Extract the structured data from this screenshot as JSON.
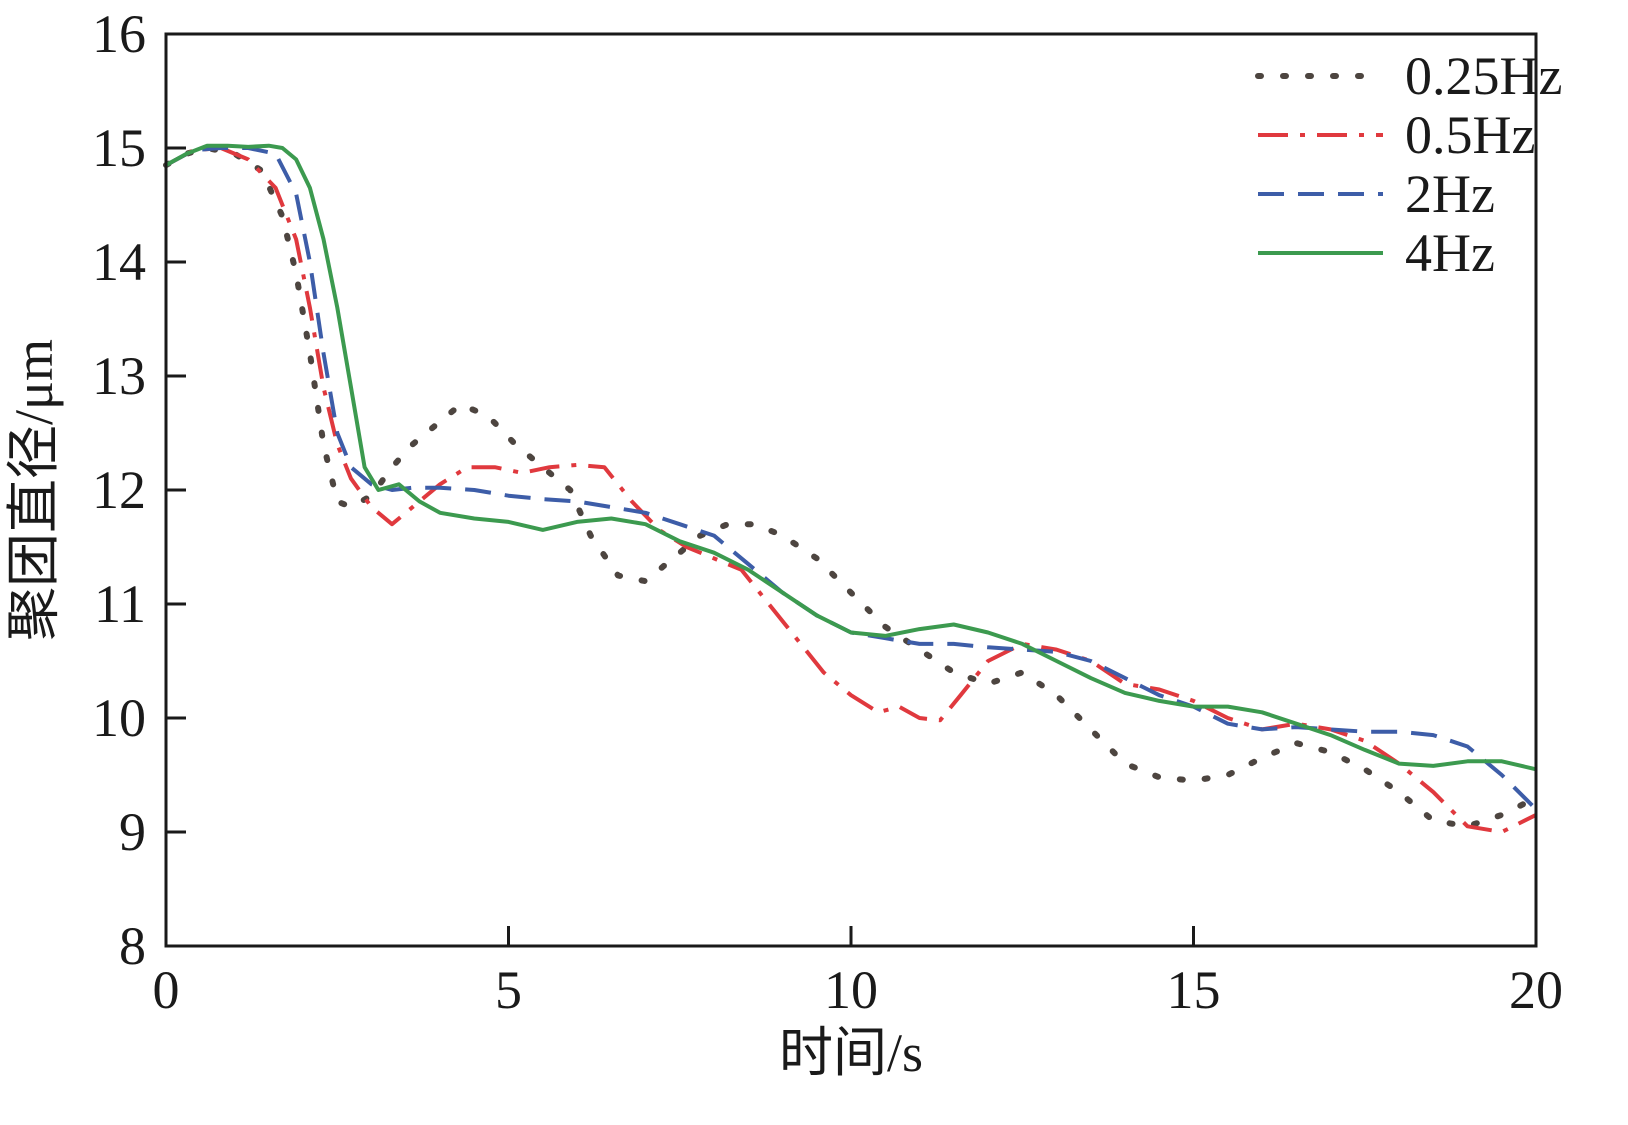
{
  "chart_data": {
    "type": "line",
    "title": "",
    "xlabel": "时间/s",
    "ylabel": "聚团直径/μm",
    "xlim": [
      0,
      20
    ],
    "ylim": [
      8,
      16
    ],
    "xticks": [
      0,
      5,
      10,
      15,
      20
    ],
    "yticks": [
      8,
      9,
      10,
      11,
      12,
      13,
      14,
      15,
      16
    ],
    "xtick_labels": [
      "0",
      "5",
      "10",
      "15",
      "20"
    ],
    "ytick_labels": [
      "8",
      "9",
      "10",
      "11",
      "12",
      "13",
      "14",
      "15",
      "16"
    ],
    "grid": false,
    "legend_position": "top-right",
    "series": [
      {
        "name": "0.25Hz",
        "color": "#4d4540",
        "style": "dotted",
        "x": [
          0,
          0.3,
          0.6,
          1.0,
          1.4,
          1.7,
          1.9,
          2.1,
          2.3,
          2.5,
          2.7,
          3.0,
          3.3,
          3.6,
          4.0,
          4.3,
          4.7,
          5.1,
          5.5,
          5.9,
          6.2,
          6.6,
          7.0,
          7.4,
          7.8,
          8.2,
          8.6,
          9.0,
          9.5,
          10.0,
          10.5,
          11.0,
          11.5,
          12.0,
          12.5,
          13.0,
          13.5,
          14.0,
          14.5,
          15.0,
          15.5,
          16.0,
          16.5,
          17.0,
          17.5,
          18.0,
          18.5,
          19.0,
          19.5,
          20.0
        ],
        "y": [
          14.85,
          14.95,
          15.0,
          14.95,
          14.8,
          14.4,
          13.9,
          13.2,
          12.4,
          11.9,
          11.85,
          11.95,
          12.2,
          12.4,
          12.6,
          12.75,
          12.65,
          12.4,
          12.2,
          12.0,
          11.6,
          11.25,
          11.2,
          11.4,
          11.6,
          11.7,
          11.7,
          11.6,
          11.4,
          11.1,
          10.8,
          10.6,
          10.4,
          10.3,
          10.4,
          10.2,
          9.9,
          9.6,
          9.48,
          9.45,
          9.5,
          9.65,
          9.78,
          9.7,
          9.55,
          9.35,
          9.1,
          9.05,
          9.15,
          9.3
        ]
      },
      {
        "name": "0.5Hz",
        "color": "#e0393e",
        "style": "dashdot",
        "x": [
          0,
          0.4,
          0.8,
          1.2,
          1.6,
          1.9,
          2.1,
          2.3,
          2.5,
          2.7,
          3.0,
          3.3,
          3.6,
          4.0,
          4.4,
          4.8,
          5.2,
          5.6,
          6.0,
          6.4,
          6.8,
          7.2,
          7.6,
          8.0,
          8.4,
          8.8,
          9.2,
          9.6,
          10.0,
          10.4,
          10.7,
          11.0,
          11.3,
          11.6,
          12.0,
          12.5,
          13.0,
          13.5,
          14.0,
          14.5,
          15.0,
          15.5,
          16.0,
          16.5,
          17.0,
          17.5,
          18.0,
          18.5,
          19.0,
          19.5,
          20.0
        ],
        "y": [
          14.85,
          14.98,
          15.0,
          14.9,
          14.65,
          14.2,
          13.6,
          12.9,
          12.4,
          12.1,
          11.85,
          11.7,
          11.85,
          12.05,
          12.2,
          12.2,
          12.15,
          12.2,
          12.22,
          12.2,
          11.9,
          11.65,
          11.5,
          11.4,
          11.3,
          11.0,
          10.7,
          10.4,
          10.2,
          10.05,
          10.1,
          10.0,
          9.98,
          10.2,
          10.5,
          10.65,
          10.6,
          10.5,
          10.3,
          10.25,
          10.15,
          10.0,
          9.9,
          9.95,
          9.9,
          9.8,
          9.6,
          9.35,
          9.05,
          9.0,
          9.15
        ]
      },
      {
        "name": "2Hz",
        "color": "#3d5da8",
        "style": "dashed",
        "x": [
          0,
          0.4,
          0.8,
          1.2,
          1.6,
          1.9,
          2.1,
          2.3,
          2.5,
          2.7,
          3.0,
          3.3,
          3.6,
          4.0,
          4.5,
          5.0,
          5.5,
          6.0,
          6.5,
          7.0,
          7.5,
          8.0,
          8.5,
          9.0,
          9.5,
          10.0,
          10.5,
          11.0,
          11.5,
          12.0,
          12.5,
          13.0,
          13.5,
          14.0,
          14.5,
          15.0,
          15.5,
          16.0,
          16.5,
          17.0,
          17.5,
          18.0,
          18.5,
          19.0,
          19.5,
          20.0
        ],
        "y": [
          14.85,
          14.98,
          15.0,
          15.0,
          14.95,
          14.6,
          14.0,
          13.2,
          12.5,
          12.2,
          12.05,
          12.0,
          12.02,
          12.02,
          12.0,
          11.95,
          11.92,
          11.9,
          11.85,
          11.8,
          11.7,
          11.6,
          11.35,
          11.1,
          10.9,
          10.75,
          10.7,
          10.65,
          10.65,
          10.62,
          10.6,
          10.58,
          10.5,
          10.35,
          10.2,
          10.1,
          9.95,
          9.9,
          9.92,
          9.9,
          9.88,
          9.88,
          9.85,
          9.75,
          9.5,
          9.2
        ]
      },
      {
        "name": "4Hz",
        "color": "#3c9a4f",
        "style": "solid",
        "x": [
          0,
          0.3,
          0.6,
          0.9,
          1.2,
          1.5,
          1.7,
          1.9,
          2.1,
          2.3,
          2.5,
          2.7,
          2.9,
          3.1,
          3.4,
          3.7,
          4.0,
          4.5,
          5.0,
          5.5,
          6.0,
          6.5,
          7.0,
          7.5,
          8.0,
          8.5,
          9.0,
          9.5,
          10.0,
          10.5,
          11.0,
          11.5,
          12.0,
          12.5,
          13.0,
          13.5,
          14.0,
          14.5,
          15.0,
          15.5,
          16.0,
          16.5,
          17.0,
          17.5,
          18.0,
          18.5,
          19.0,
          19.5,
          20.0
        ],
        "y": [
          14.85,
          14.95,
          15.02,
          15.02,
          15.01,
          15.02,
          15.0,
          14.9,
          14.65,
          14.2,
          13.6,
          12.9,
          12.2,
          12.0,
          12.05,
          11.9,
          11.8,
          11.75,
          11.72,
          11.65,
          11.72,
          11.75,
          11.7,
          11.55,
          11.45,
          11.3,
          11.1,
          10.9,
          10.75,
          10.72,
          10.78,
          10.82,
          10.75,
          10.65,
          10.5,
          10.35,
          10.22,
          10.15,
          10.1,
          10.1,
          10.05,
          9.95,
          9.85,
          9.72,
          9.6,
          9.58,
          9.62,
          9.62,
          9.55
        ]
      }
    ]
  }
}
